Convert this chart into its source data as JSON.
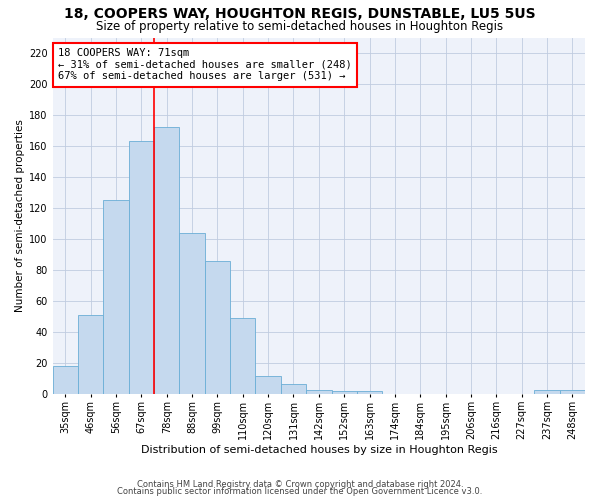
{
  "title1": "18, COOPERS WAY, HOUGHTON REGIS, DUNSTABLE, LU5 5US",
  "title2": "Size of property relative to semi-detached houses in Houghton Regis",
  "xlabel": "Distribution of semi-detached houses by size in Houghton Regis",
  "ylabel": "Number of semi-detached properties",
  "categories": [
    "35sqm",
    "46sqm",
    "56sqm",
    "67sqm",
    "78sqm",
    "88sqm",
    "99sqm",
    "110sqm",
    "120sqm",
    "131sqm",
    "142sqm",
    "152sqm",
    "163sqm",
    "174sqm",
    "184sqm",
    "195sqm",
    "206sqm",
    "216sqm",
    "227sqm",
    "237sqm",
    "248sqm"
  ],
  "values": [
    18,
    51,
    125,
    163,
    172,
    104,
    86,
    49,
    12,
    7,
    3,
    2,
    2,
    0,
    0,
    0,
    0,
    0,
    0,
    3,
    3
  ],
  "bar_color": "#c5d9ee",
  "bar_edge_color": "#6aaed6",
  "annotation_line1": "18 COOPERS WAY: 71sqm",
  "annotation_line2": "← 31% of semi-detached houses are smaller (248)",
  "annotation_line3": "67% of semi-detached houses are larger (531) →",
  "annotation_box_color": "white",
  "annotation_box_edge": "red",
  "vline_color": "red",
  "vline_x": 3.5,
  "ylim": [
    0,
    230
  ],
  "yticks": [
    0,
    20,
    40,
    60,
    80,
    100,
    120,
    140,
    160,
    180,
    200,
    220
  ],
  "footnote1": "Contains HM Land Registry data © Crown copyright and database right 2024.",
  "footnote2": "Contains public sector information licensed under the Open Government Licence v3.0.",
  "bg_color": "#eef2fa",
  "grid_color": "#c0cce0",
  "title1_fontsize": 10,
  "title2_fontsize": 8.5,
  "xlabel_fontsize": 8,
  "ylabel_fontsize": 7.5,
  "tick_fontsize": 7,
  "annotation_fontsize": 7.5,
  "footnote_fontsize": 6
}
